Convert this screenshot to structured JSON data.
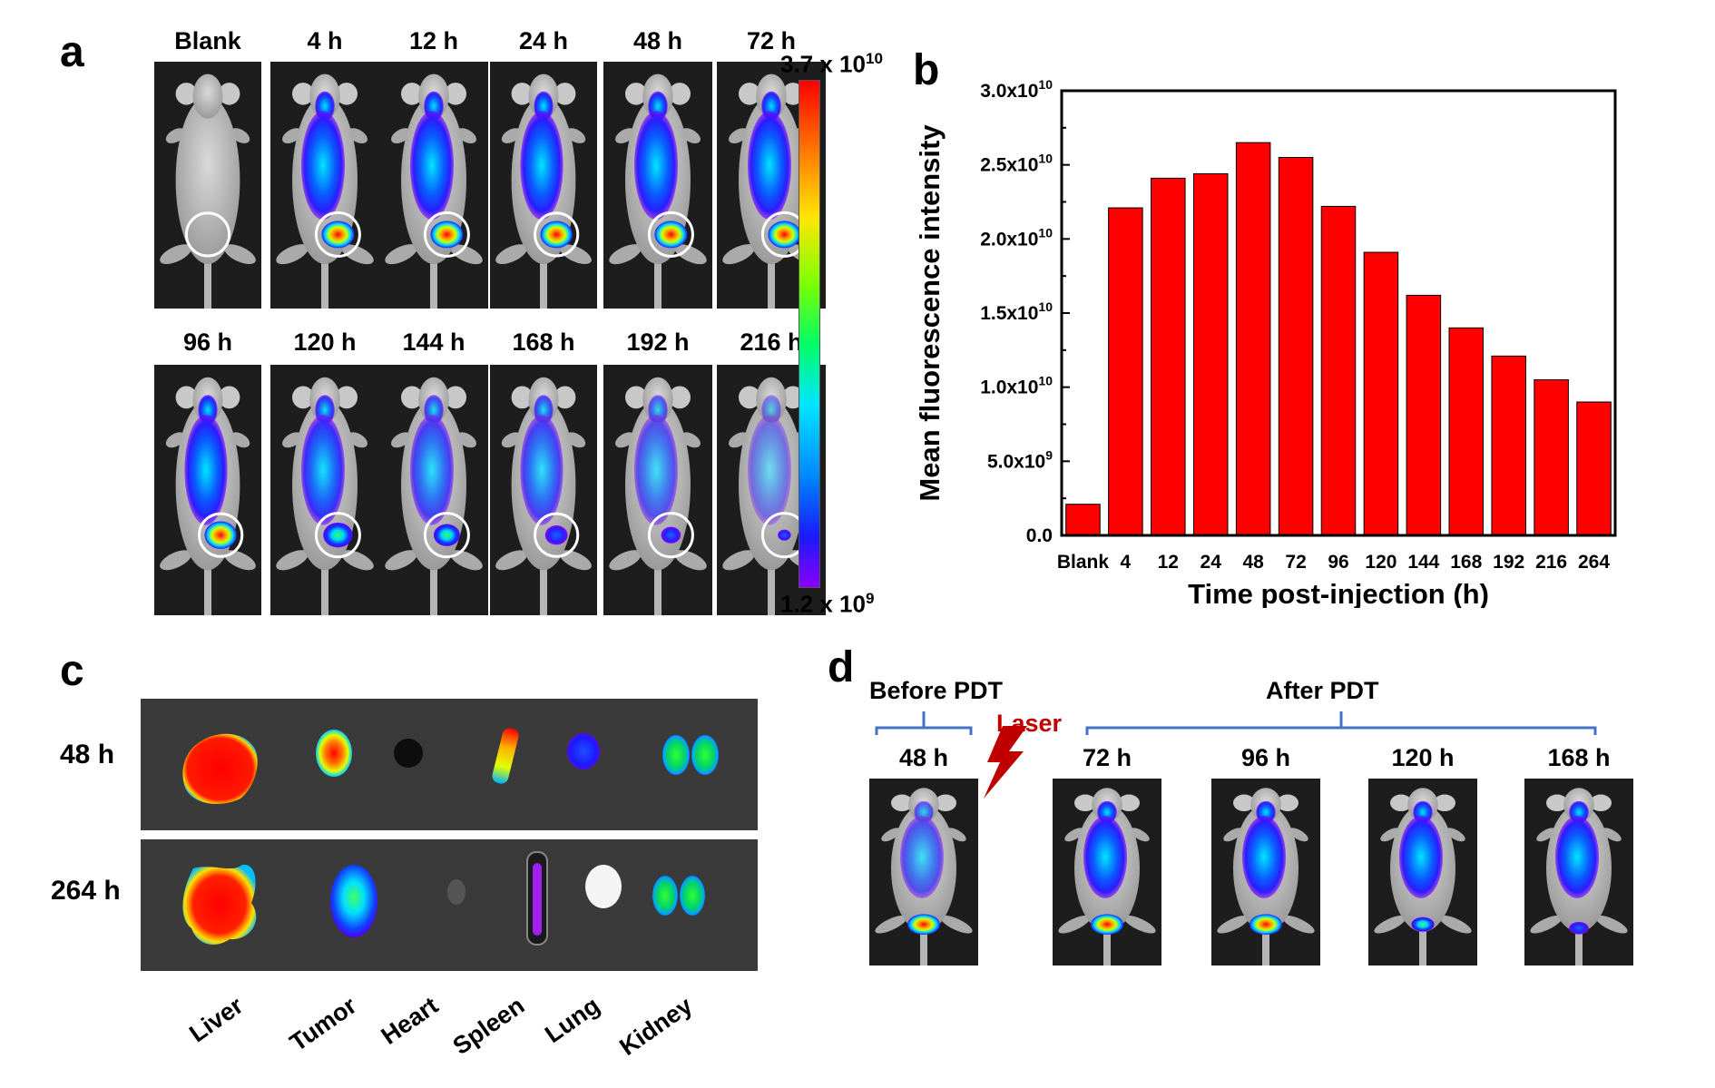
{
  "panel_a": {
    "letter": "a",
    "row1_times": [
      "Blank",
      "4 h",
      "12 h",
      "24 h",
      "48 h",
      "72 h"
    ],
    "row2_times": [
      "96 h",
      "120 h",
      "144 h",
      "168 h",
      "192 h",
      "216 h"
    ],
    "colorbar": {
      "max_label": "3.7 x 10",
      "max_exp": "10",
      "min_label": "1.2 x 10",
      "min_exp": "9"
    }
  },
  "panel_b": {
    "letter": "b"
  },
  "chart_data": {
    "type": "bar",
    "categories": [
      "Blank",
      "4",
      "12",
      "24",
      "48",
      "72",
      "96",
      "120",
      "144",
      "168",
      "192",
      "216",
      "264"
    ],
    "values": [
      2100000000.0,
      22100000000.0,
      24100000000.0,
      24400000000.0,
      26500000000.0,
      25500000000.0,
      22200000000.0,
      19100000000.0,
      16200000000.0,
      14000000000.0,
      12100000000.0,
      10500000000.0,
      9000000000.0
    ],
    "xlabel": "Time post-injection (h)",
    "ylabel": "Mean fluorescence intensity",
    "ylim": [
      0,
      30000000000.0
    ],
    "yticks": [
      {
        "mant": "0.0",
        "exp": ""
      },
      {
        "mant": "5.0x10",
        "exp": "9"
      },
      {
        "mant": "1.0x10",
        "exp": "10"
      },
      {
        "mant": "1.5x10",
        "exp": "10"
      },
      {
        "mant": "2.0x10",
        "exp": "10"
      },
      {
        "mant": "2.5x10",
        "exp": "10"
      },
      {
        "mant": "3.0x10",
        "exp": "10"
      }
    ],
    "bar_color": "#ff0000",
    "grid": false
  },
  "panel_c": {
    "letter": "c",
    "rows": [
      "48 h",
      "264 h"
    ],
    "organs": [
      "Liver",
      "Tumor",
      "Heart",
      "Spleen",
      "Lung",
      "Kidney"
    ]
  },
  "panel_d": {
    "letter": "d",
    "before": "Before PDT",
    "after": "After PDT",
    "laser": "Laser",
    "times": [
      "48 h",
      "72 h",
      "96 h",
      "120 h",
      "168 h"
    ],
    "bracket_color": "#4472c4",
    "laser_color": "#c00000"
  }
}
